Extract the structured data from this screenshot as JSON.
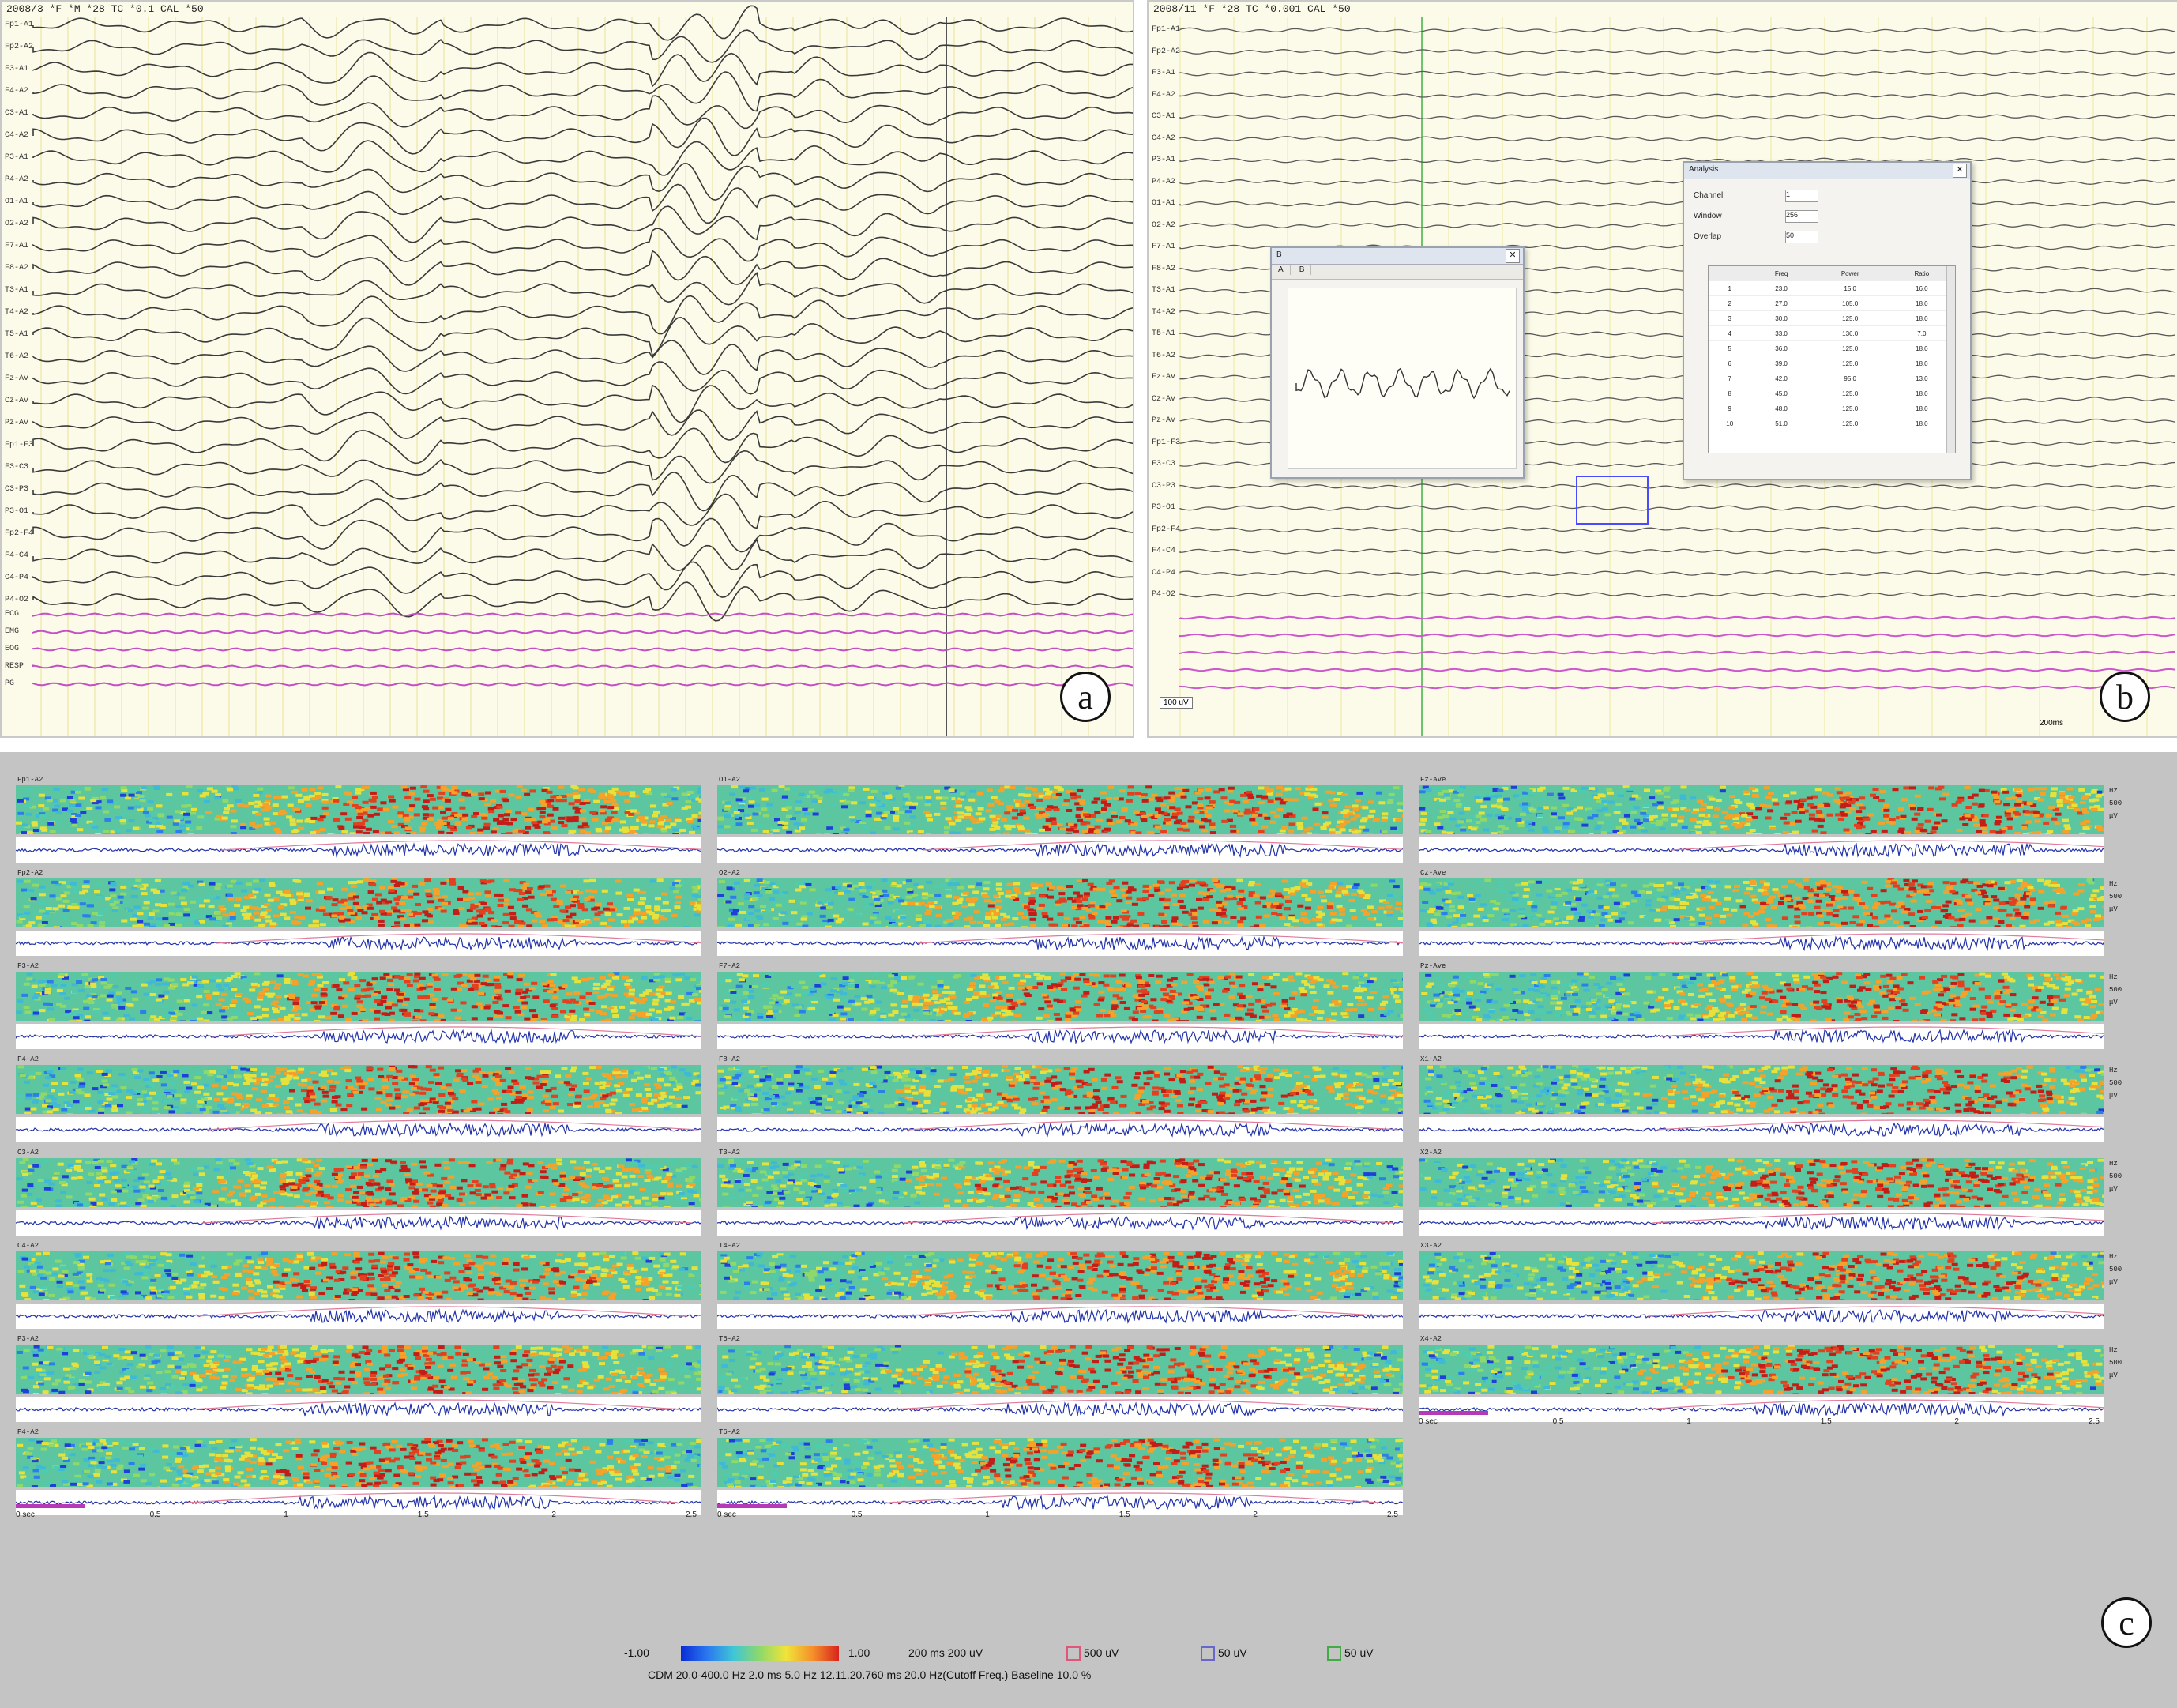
{
  "panel_a": {
    "header": "2008/3 *F  *M  *28  TC  *0.1  CAL  *50",
    "label": "a",
    "channel_labels": [
      "Fp1-A1",
      "Fp2-A2",
      "F3-A1",
      "F4-A2",
      "C3-A1",
      "C4-A2",
      "P3-A1",
      "P4-A2",
      "O1-A1",
      "O2-A2",
      "F7-A1",
      "F8-A2",
      "T3-A1",
      "T4-A2",
      "T5-A1",
      "T6-A2",
      "Fz-Av",
      "Cz-Av",
      "Pz-Av",
      "Fp1-F3",
      "F3-C3",
      "C3-P3",
      "P3-O1",
      "Fp2-F4",
      "F4-C4",
      "C4-P4",
      "P4-O2",
      "ECG",
      "EMG",
      "EOG",
      "RESP",
      "PG"
    ]
  },
  "panel_b": {
    "header": "2008/11 *F  *28  TC  *0.001  CAL  *50",
    "label": "b",
    "wave_window": {
      "title": "B",
      "tabs": [
        "A",
        "B"
      ]
    },
    "table_window": {
      "title": "Analysis",
      "params": [
        {
          "label": "Channel",
          "value": "1"
        },
        {
          "label": "Window",
          "value": "256"
        },
        {
          "label": "Overlap",
          "value": "50"
        }
      ],
      "columns": [
        "",
        "Freq",
        "Power",
        "Ratio"
      ],
      "rows": [
        [
          "1",
          "23.0",
          "15.0",
          "16.0"
        ],
        [
          "2",
          "27.0",
          "105.0",
          "18.0"
        ],
        [
          "3",
          "30.0",
          "125.0",
          "18.0"
        ],
        [
          "4",
          "33.0",
          "136.0",
          "7.0"
        ],
        [
          "5",
          "36.0",
          "125.0",
          "18.0"
        ],
        [
          "6",
          "39.0",
          "125.0",
          "18.0"
        ],
        [
          "7",
          "42.0",
          "95.0",
          "13.0"
        ],
        [
          "8",
          "45.0",
          "125.0",
          "18.0"
        ],
        [
          "9",
          "48.0",
          "125.0",
          "18.0"
        ],
        [
          "10",
          "51.0",
          "125.0",
          "18.0"
        ]
      ]
    },
    "scale_left": "100 uV",
    "scale_right": "200ms"
  },
  "panel_c": {
    "label": "c",
    "columns": [
      [
        "Fp1-A2",
        "Fp2-A2",
        "F3-A2",
        "F4-A2",
        "C3-A2",
        "C4-A2",
        "P3-A2",
        "P4-A2"
      ],
      [
        "O1-A2",
        "O2-A2",
        "F7-A2",
        "F8-A2",
        "T3-A2",
        "T4-A2",
        "T5-A2",
        "T6-A2"
      ],
      [
        "Fz-Ave",
        "Cz-Ave",
        "Pz-Ave",
        "X1-A2",
        "X2-A2",
        "X3-A2",
        "X4-A2"
      ]
    ],
    "side_labels": [
      "Hz",
      "500",
      "μV"
    ],
    "time_axis": [
      "0 sec",
      "0.5",
      "1",
      "1.5",
      "2",
      "2.5"
    ],
    "legend": {
      "cmin": "-1.00",
      "cmax": "1.00",
      "scale": "200 ms 200 uV",
      "items": [
        {
          "label": "500 uV",
          "color": "#e0557a"
        },
        {
          "label": "50 uV",
          "color": "#6666cc"
        },
        {
          "label": "50 uV",
          "color": "#44aa44"
        }
      ],
      "line2": "CDM  20.0-400.0 Hz  2.0 ms  5.0 Hz  12.11.20.760 ms  20.0 Hz(Cutoff Freq.)  Baseline 10.0 %"
    }
  }
}
